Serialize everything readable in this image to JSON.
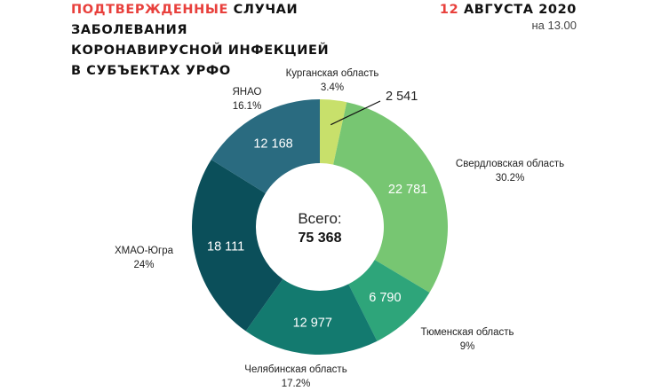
{
  "header": {
    "title_red": "ПОДТВЕРЖДЕННЫЕ",
    "title_rest": " СЛУЧАИ",
    "title_line2": "ЗАБОЛЕВАНИЯ",
    "title_line3": "КОРОНАВИРУСНОЙ ИНФЕКЦИЕЙ",
    "title_line4": "В СУБЪЕКТАХ УРФО",
    "date_red": "12",
    "date_rest": " АВГУСТА 2020",
    "time": "на 13.00"
  },
  "colors": {
    "accent": "#e8403c"
  },
  "chart_data": {
    "type": "pie",
    "donut": true,
    "center_label": "Всего:",
    "total": 75368,
    "total_label": "75 368",
    "slices": [
      {
        "name": "Курганская область",
        "value": 2541,
        "value_label": "2 541",
        "percent": "3.4%",
        "color": "#c8e06b"
      },
      {
        "name": "Свердловская область",
        "value": 22781,
        "value_label": "22 781",
        "percent": "30.2%",
        "color": "#77c672"
      },
      {
        "name": "Тюменская область",
        "value": 6790,
        "value_label": "6 790",
        "percent": "9%",
        "color": "#2ea57a"
      },
      {
        "name": "Челябинская область",
        "value": 12977,
        "value_label": "12 977",
        "percent": "17.2%",
        "color": "#137a6f"
      },
      {
        "name": "ХМАО-Югра",
        "value": 18111,
        "value_label": "18 111",
        "percent": "24%",
        "color": "#0b4f5a"
      },
      {
        "name": "ЯНАО",
        "value": 12168,
        "value_label": "12 168",
        "percent": "16.1%",
        "color": "#2a6b80"
      }
    ]
  }
}
